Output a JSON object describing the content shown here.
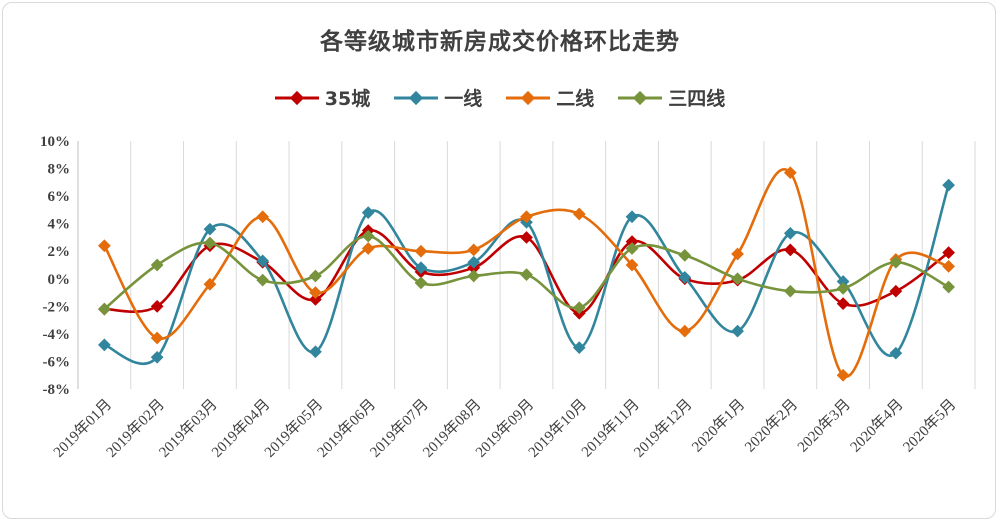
{
  "chart_data": {
    "type": "line",
    "title": "各等级城市新房成交价格环比走势",
    "categories": [
      "2019年01月",
      "2019年02月",
      "2019年03月",
      "2019年04月",
      "2019年05月",
      "2019年06月",
      "2019年07月",
      "2019年08月",
      "2019年09月",
      "2019年10月",
      "2019年11月",
      "2019年12月",
      "2020年1月",
      "2020年2月",
      "2020年3月",
      "2020年4月",
      "2020年5月"
    ],
    "ylim": [
      -8,
      10
    ],
    "yticks": [
      -8,
      -6,
      -4,
      -2,
      0,
      2,
      4,
      6,
      8,
      10
    ],
    "ytick_labels": [
      "-8%",
      "-6%",
      "-4%",
      "-2%",
      "0%",
      "2%",
      "4%",
      "6%",
      "8%",
      "10%"
    ],
    "grid": "vertical",
    "legend_position": "top",
    "series": [
      {
        "name": "35城",
        "color": "#c00000",
        "values": [
          -2.2,
          -2.0,
          2.4,
          1.2,
          -1.5,
          3.5,
          0.5,
          0.8,
          3.0,
          -2.5,
          2.7,
          0.0,
          -0.1,
          2.1,
          -1.8,
          -0.9,
          1.9
        ]
      },
      {
        "name": "一线",
        "color": "#31859c",
        "values": [
          -4.8,
          -5.7,
          3.6,
          1.3,
          -5.3,
          4.8,
          0.8,
          1.2,
          4.1,
          -5.0,
          4.5,
          0.1,
          -3.8,
          3.3,
          -0.2,
          -5.4,
          6.8
        ]
      },
      {
        "name": "二线",
        "color": "#e46c0a",
        "values": [
          2.4,
          -4.3,
          -0.4,
          4.5,
          -1.0,
          2.2,
          2.0,
          2.1,
          4.5,
          4.7,
          1.0,
          -3.8,
          1.8,
          7.7,
          -7.0,
          1.4,
          0.9
        ]
      },
      {
        "name": "三四线",
        "color": "#77933c",
        "values": [
          -2.2,
          1.0,
          2.6,
          -0.1,
          0.2,
          3.1,
          -0.3,
          0.2,
          0.3,
          -2.1,
          2.2,
          1.7,
          0.0,
          -0.9,
          -0.7,
          1.2,
          -0.6
        ]
      }
    ]
  }
}
